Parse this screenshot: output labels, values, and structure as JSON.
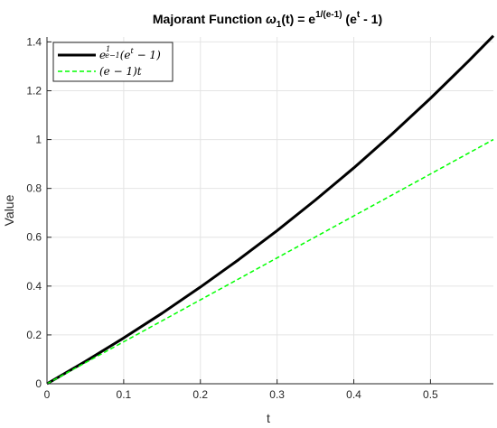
{
  "chart_data": {
    "type": "line",
    "title": {
      "prefix": "Majorant Function ",
      "omega": "ω",
      "omega_sub": "1",
      "mid": "(t) = e",
      "exp1": "1/(e-1)",
      "mid2": " (e",
      "exp2": "t",
      "suffix": " - 1)"
    },
    "xlabel": "t",
    "ylabel": "Value",
    "xlim": [
      0,
      0.582
    ],
    "ylim": [
      0,
      1.42
    ],
    "xticks": [
      0,
      0.1,
      0.2,
      0.3,
      0.4,
      0.5
    ],
    "xtick_labels": [
      "0",
      "0.1",
      "0.2",
      "0.3",
      "0.4",
      "0.5"
    ],
    "yticks": [
      0,
      0.2,
      0.4,
      0.6,
      0.8,
      1.0,
      1.2,
      1.4
    ],
    "ytick_labels": [
      "0",
      "0.2",
      "0.4",
      "0.6",
      "0.8",
      "1",
      "1.2",
      "1.4"
    ],
    "grid": true,
    "legend_position": "top-left",
    "series": [
      {
        "name": "e^{1/(e-1)}(e^t - 1)",
        "legend": {
          "base": "e",
          "exp_num": "1",
          "exp_den": "e−1",
          "open": "(e",
          "sup": "t",
          "close": " − 1)"
        },
        "color": "#000000",
        "style": "solid",
        "x": [
          0,
          0.05,
          0.1,
          0.15,
          0.2,
          0.25,
          0.3,
          0.35,
          0.4,
          0.45,
          0.5,
          0.55,
          0.582
        ],
        "y": [
          0,
          0.0912,
          0.1875,
          0.2887,
          0.396,
          0.5085,
          0.627,
          0.7525,
          0.884,
          1.023,
          1.169,
          1.3226,
          1.4247
        ]
      },
      {
        "name": "(e-1)t",
        "legend": {
          "text": "(e − 1)t"
        },
        "color": "#00ff00",
        "style": "dashed",
        "x": [
          0,
          0.582
        ],
        "y": [
          0,
          1.0
        ]
      }
    ]
  }
}
